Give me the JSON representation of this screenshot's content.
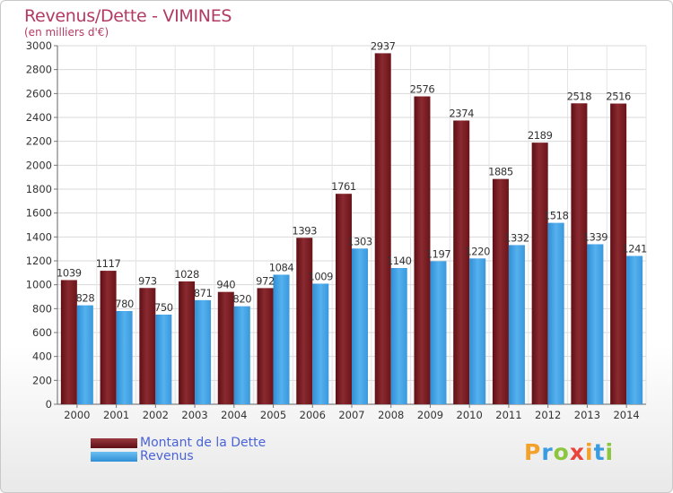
{
  "header": {
    "title": "Revenus/Dette - VIMINES",
    "subtitle": "(en milliers d'€)"
  },
  "colors": {
    "title": "#b23a63",
    "debt": "#7a1e24",
    "revenue": "#3fa2e8",
    "legend_text": "#4a63d8"
  },
  "legend": {
    "items": [
      {
        "label": "Montant de la Dette",
        "color": "#7a1e24"
      },
      {
        "label": "Revenus",
        "color": "#3fa2e8"
      }
    ],
    "placement": "bottom-left"
  },
  "logo": {
    "letters": [
      "P",
      "r",
      "o",
      "x",
      "i",
      "t",
      "i"
    ],
    "colors": [
      "#f2a12b",
      "#3a9be0",
      "#8cc63f",
      "#e8463c",
      "#f2a12b",
      "#3a9be0",
      "#8cc63f"
    ]
  },
  "chart_data": {
    "type": "bar",
    "categories": [
      "2000",
      "2001",
      "2002",
      "2003",
      "2004",
      "2005",
      "2006",
      "2007",
      "2008",
      "2009",
      "2010",
      "2011",
      "2012",
      "2013",
      "2014"
    ],
    "series": [
      {
        "name": "Montant de la Dette",
        "values": [
          1039,
          1117,
          973,
          1028,
          940,
          972,
          1393,
          1761,
          2937,
          2576,
          2374,
          1885,
          2189,
          2518,
          2516
        ]
      },
      {
        "name": "Revenus",
        "values": [
          828,
          780,
          750,
          871,
          820,
          1084,
          1009,
          1303,
          1140,
          1197,
          1220,
          1332,
          1518,
          1339,
          1241
        ]
      }
    ],
    "ylim": [
      0,
      3000
    ],
    "yticks": [
      0,
      200,
      400,
      600,
      800,
      1000,
      1200,
      1400,
      1600,
      1800,
      2000,
      2200,
      2400,
      2600,
      2800,
      3000
    ],
    "grid": true,
    "data_labels": true
  }
}
